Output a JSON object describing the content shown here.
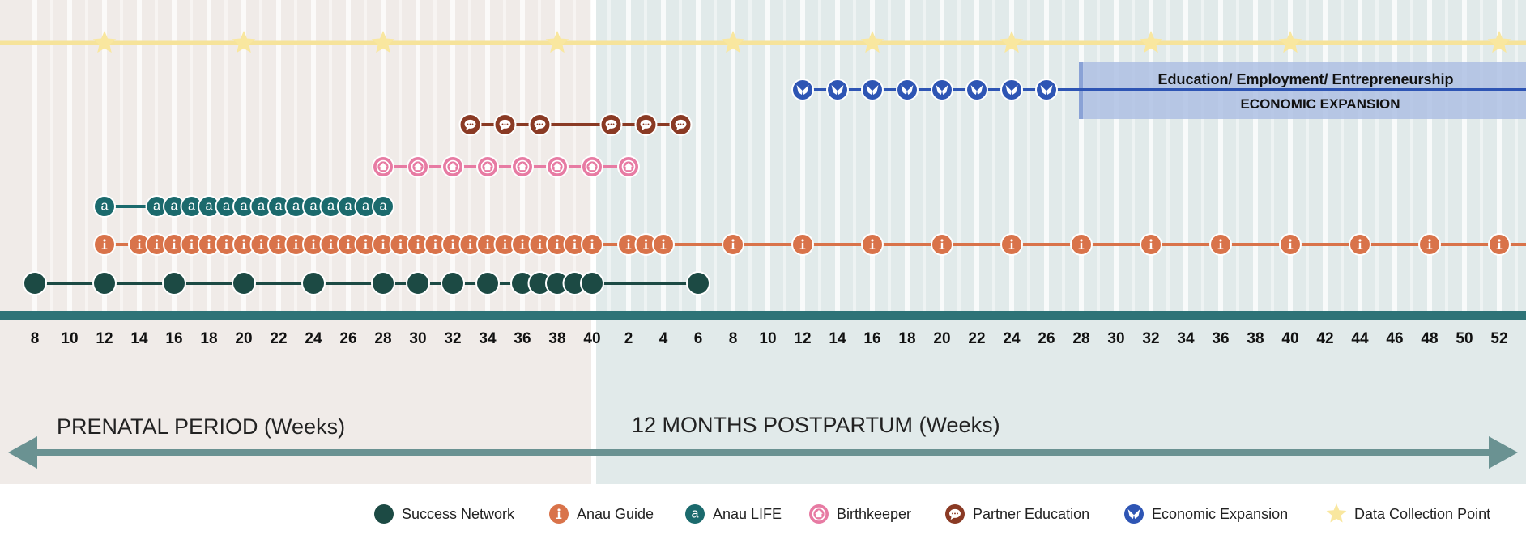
{
  "timeline": {
    "prenatal_weeks": [
      8,
      10,
      12,
      14,
      16,
      18,
      20,
      22,
      24,
      26,
      28,
      30,
      32,
      34,
      36,
      38,
      40
    ],
    "postpartum_weeks": [
      2,
      4,
      6,
      8,
      10,
      12,
      14,
      16,
      18,
      20,
      22,
      24,
      26,
      28,
      30,
      32,
      34,
      36,
      38,
      40,
      42,
      44,
      46,
      48,
      50,
      52
    ],
    "prenatal_label": "PRENATAL PERIOD (Weeks)",
    "postpartum_label": "12 MONTHS POSTPARTUM (Weeks)"
  },
  "colors": {
    "prenatal_bg": "#f0ebe8",
    "postpartum_bg": "#e1eaea",
    "axis": "#2e7377",
    "arrow": "#6a9292",
    "success_network": "#1c4a44",
    "anau_guide": "#d9734a",
    "anau_life": "#1b6a6d",
    "birthkeeper": "#e77ba3",
    "partner_education": "#8a3a24",
    "economic_expansion": "#2e55b4",
    "data_collection": "#f9e79f"
  },
  "tracks": {
    "data_collection": [
      "P12",
      "P20",
      "P28",
      "P38",
      "N8",
      "N16",
      "N24",
      "N32",
      "N40",
      "N52"
    ],
    "economic_expansion": [
      "N12",
      "N14",
      "N16",
      "N18",
      "N20",
      "N22",
      "N24",
      "N26"
    ],
    "partner_education": [
      "P33",
      "P35",
      "P37",
      "P41",
      "P43",
      "P45"
    ],
    "birthkeeper": [
      "P28",
      "P30",
      "P32",
      "P34",
      "P36",
      "P38",
      "P40",
      "P42"
    ],
    "anau_life": [
      "P12",
      "P15",
      "P16",
      "P17",
      "P18",
      "P19",
      "P20",
      "P21",
      "P22",
      "P23",
      "P24",
      "P25",
      "P26",
      "P27",
      "P28"
    ],
    "anau_guide": [
      "P12",
      "P14",
      "P15",
      "P16",
      "P17",
      "P18",
      "P19",
      "P20",
      "P21",
      "P22",
      "P23",
      "P24",
      "P25",
      "P26",
      "P27",
      "P28",
      "P29",
      "P30",
      "P31",
      "P32",
      "P33",
      "P34",
      "P35",
      "P36",
      "P37",
      "P38",
      "P39",
      "P40",
      "N2",
      "N3",
      "N4",
      "N8",
      "N12",
      "N16",
      "N20",
      "N24",
      "N28",
      "N32",
      "N36",
      "N40",
      "N44",
      "N48",
      "N52"
    ],
    "success_network": [
      "P8",
      "P12",
      "P16",
      "P20",
      "P24",
      "P28",
      "P30",
      "P32",
      "P34",
      "P36",
      "P37",
      "P38",
      "P39",
      "P40",
      "N6"
    ]
  },
  "economic_box": {
    "line1": "Education/ Employment/ Entrepreneurship",
    "line2": "ECONOMIC EXPANSION"
  },
  "legend": [
    {
      "key": "success_network",
      "label": "Success Network",
      "icon": "dot-icon"
    },
    {
      "key": "anau_guide",
      "label": "Anau Guide",
      "icon": "info-icon"
    },
    {
      "key": "anau_life",
      "label": "Anau LIFE",
      "icon": "letter-a-icon"
    },
    {
      "key": "birthkeeper",
      "label": "Birthkeeper",
      "icon": "house-icon"
    },
    {
      "key": "partner_education",
      "label": "Partner Education",
      "icon": "speech-bubble-icon"
    },
    {
      "key": "economic_expansion",
      "label": "Economic Expansion",
      "icon": "butterfly-icon"
    },
    {
      "key": "data_collection",
      "label": "Data Collection Point",
      "icon": "star-icon"
    }
  ]
}
